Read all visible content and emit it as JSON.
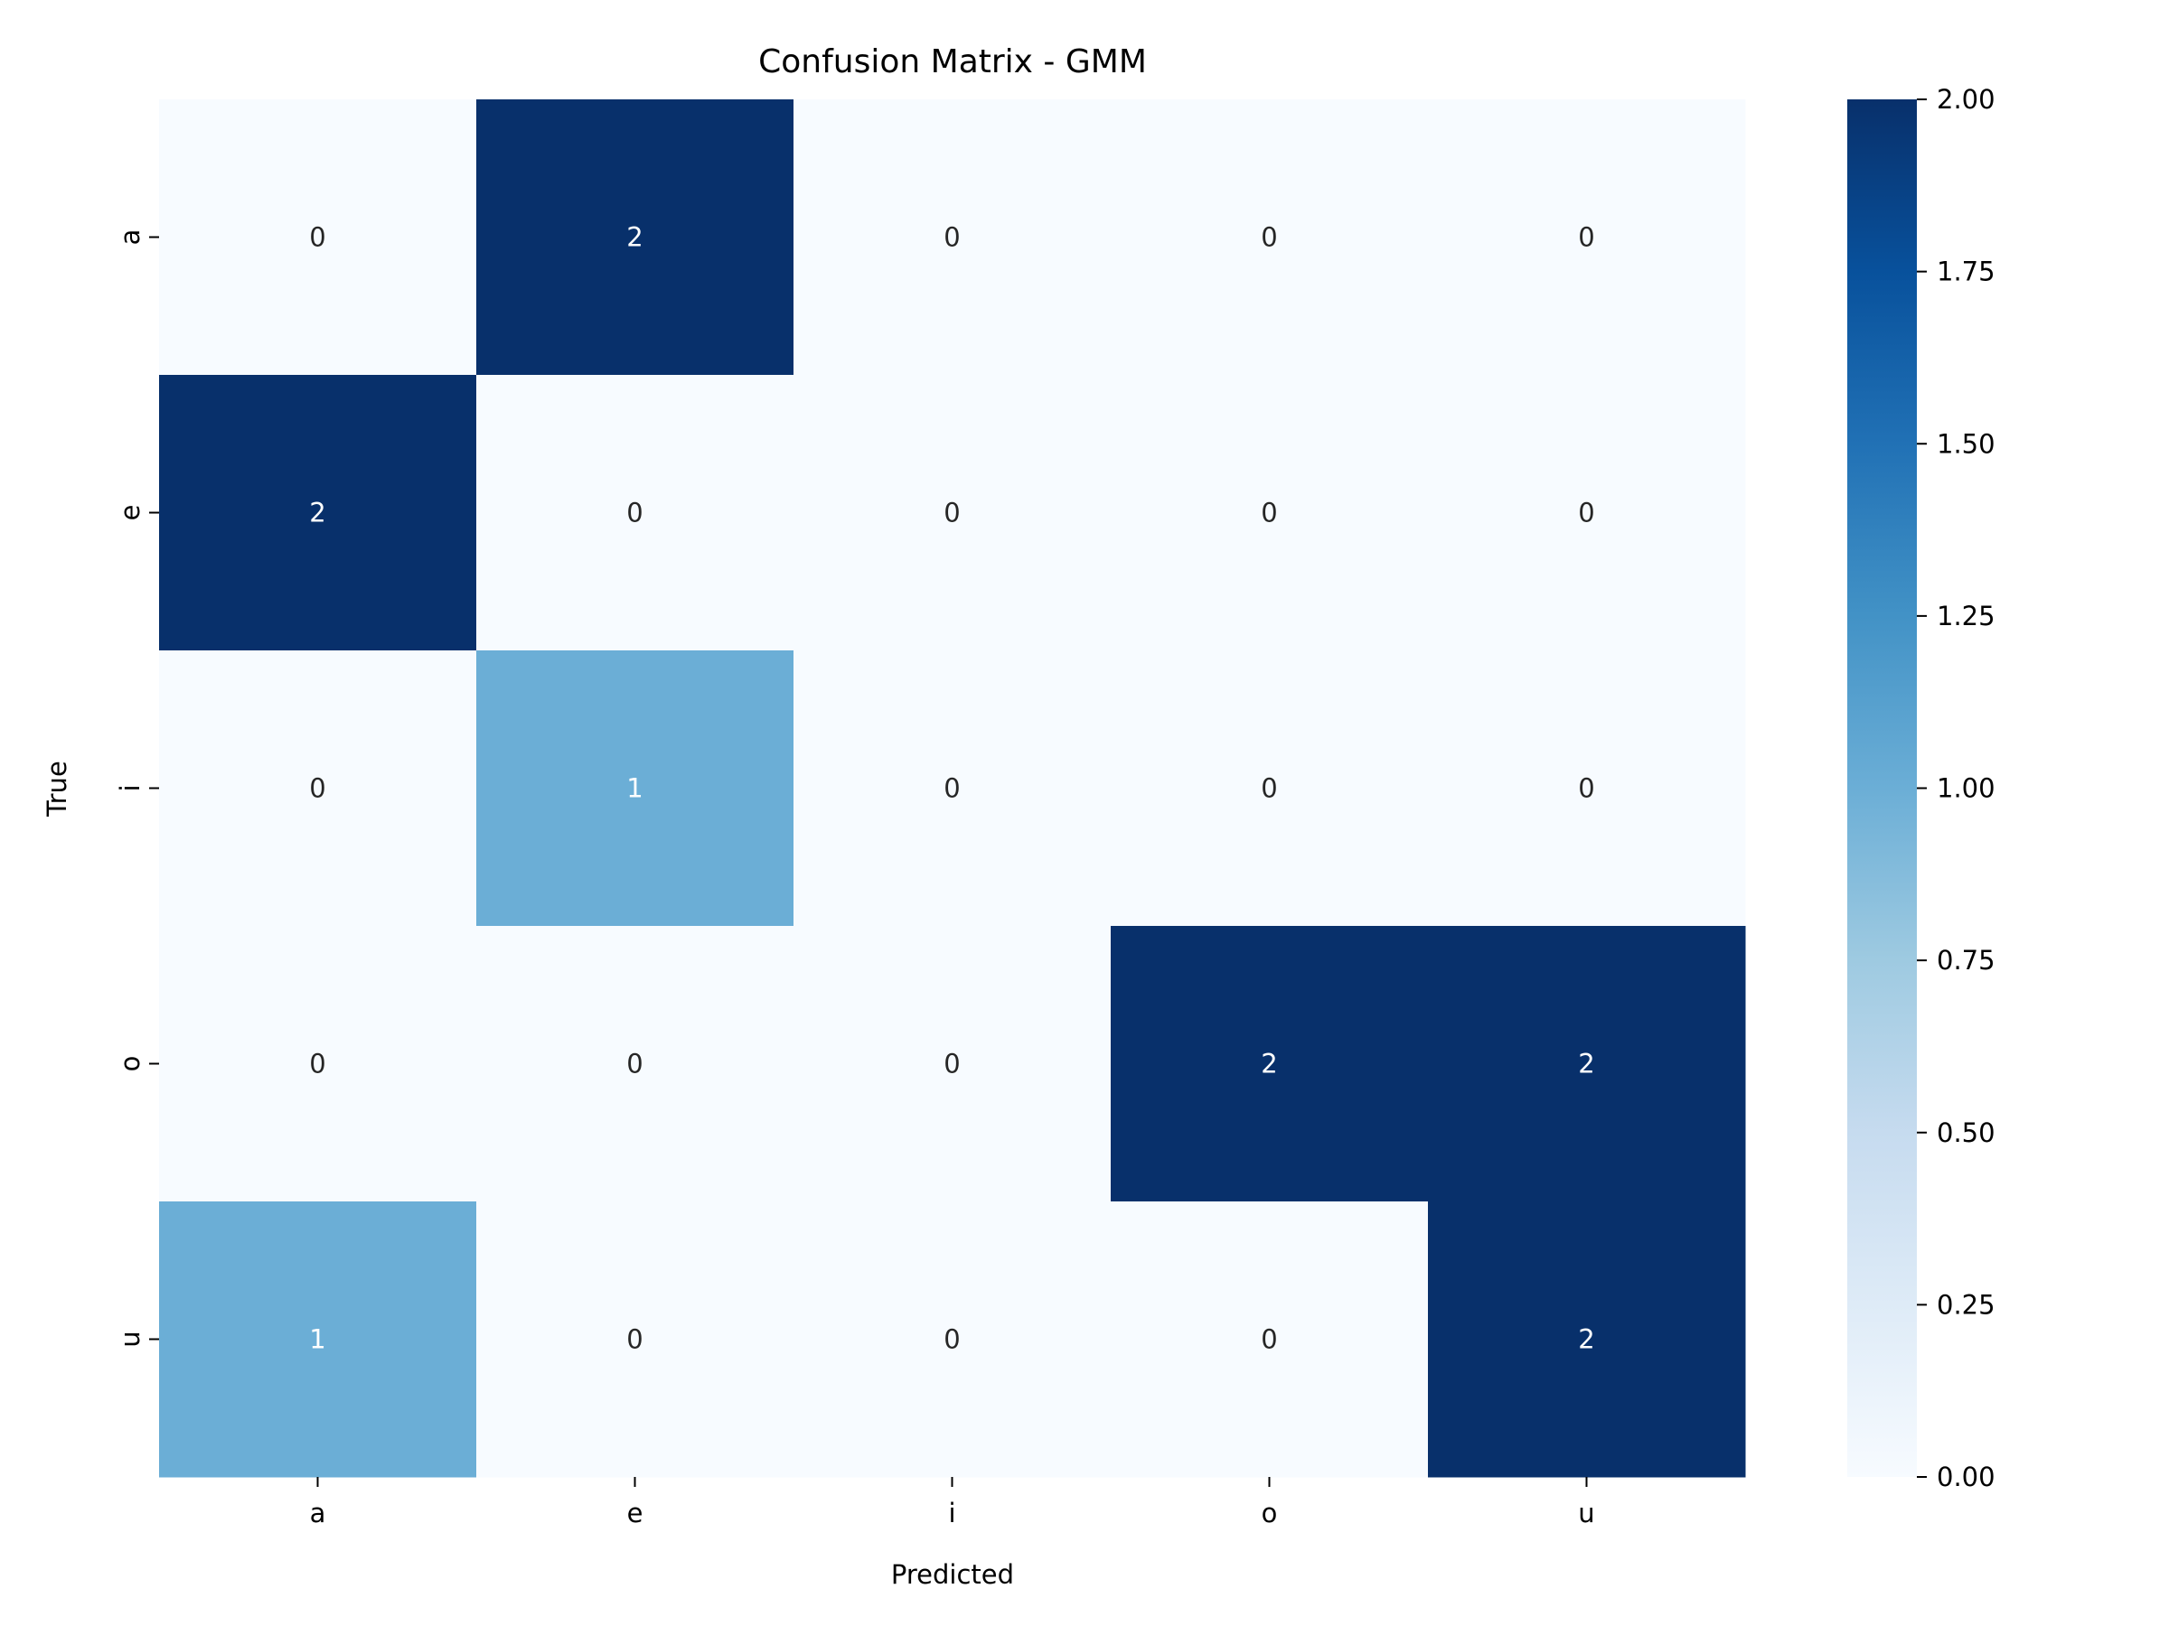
{
  "chart_data": {
    "type": "heatmap",
    "title": "Confusion Matrix - GMM",
    "xlabel": "Predicted",
    "ylabel": "True",
    "x_categories": [
      "a",
      "e",
      "i",
      "o",
      "u"
    ],
    "y_categories": [
      "a",
      "e",
      "i",
      "o",
      "u"
    ],
    "values": [
      [
        0,
        2,
        0,
        0,
        0
      ],
      [
        2,
        0,
        0,
        0,
        0
      ],
      [
        0,
        1,
        0,
        0,
        0
      ],
      [
        0,
        0,
        0,
        2,
        2
      ],
      [
        1,
        0,
        0,
        0,
        2
      ]
    ],
    "colorbar": {
      "min": 0,
      "max": 2,
      "ticks": [
        "0.00",
        "0.25",
        "0.50",
        "0.75",
        "1.00",
        "1.25",
        "1.50",
        "1.75",
        "2.00"
      ]
    },
    "colormap": "Blues",
    "colors": {
      "low": "#f7fbff",
      "high": "#08306b"
    }
  }
}
